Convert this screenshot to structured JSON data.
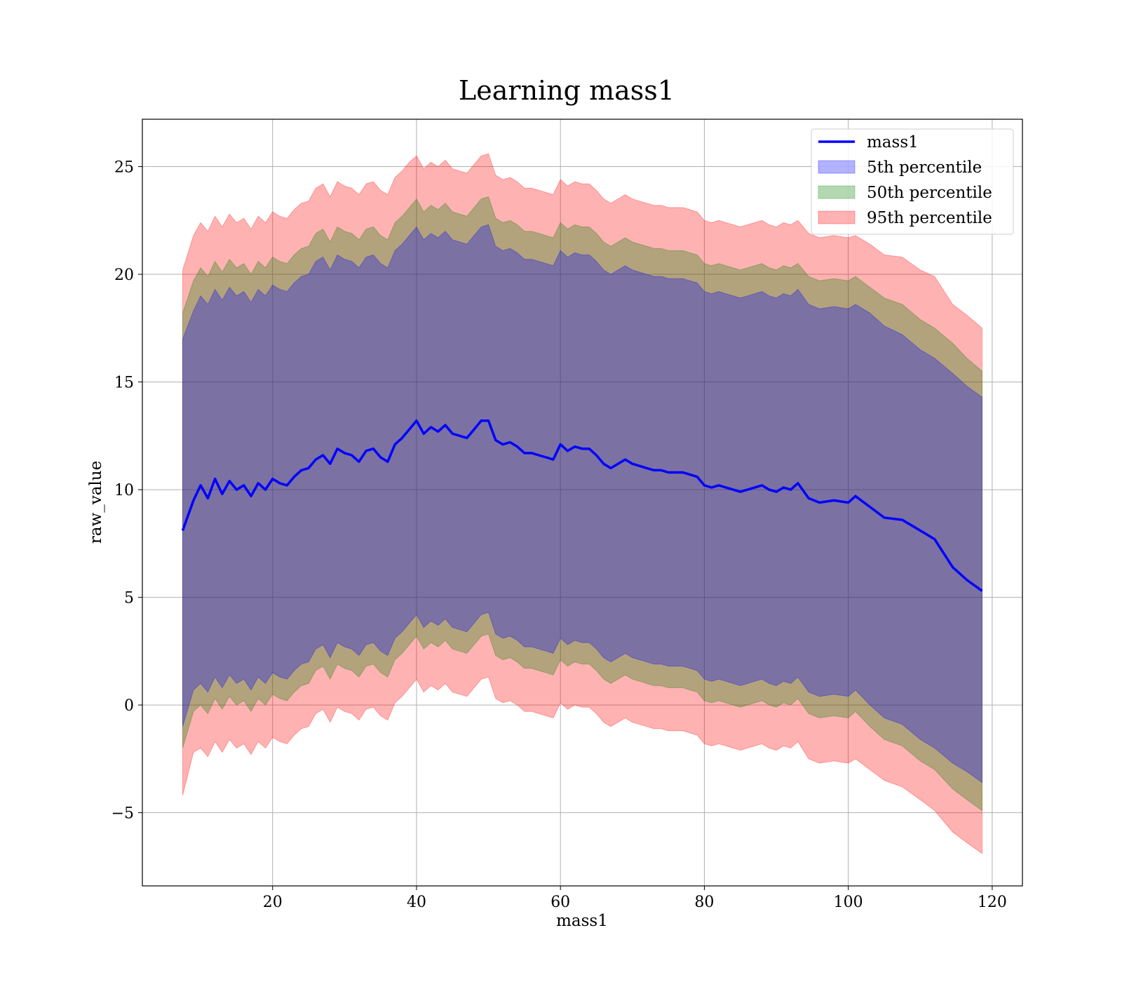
{
  "chart_data": {
    "type": "line",
    "title": "Learning mass1",
    "xlabel": "mass1",
    "ylabel": "raw_value",
    "xlim": [
      1.9,
      124.2
    ],
    "ylim": [
      -8.4,
      27.2
    ],
    "xticks": [
      20,
      40,
      60,
      80,
      100,
      120
    ],
    "xtick_labels": [
      "20",
      "40",
      "60",
      "80",
      "100",
      "120"
    ],
    "yticks": [
      -5,
      0,
      5,
      10,
      15,
      20,
      25
    ],
    "ytick_labels": [
      "−5",
      "0",
      "5",
      "10",
      "15",
      "20",
      "25"
    ],
    "grid": true,
    "legend_position": "upper right",
    "legend": [
      {
        "label": "mass1",
        "kind": "line",
        "color": "#0000ff"
      },
      {
        "label": "5th percentile",
        "kind": "band",
        "color": "#0000ff"
      },
      {
        "label": "50th percentile",
        "kind": "band",
        "color": "#008000"
      },
      {
        "label": "95th percentile",
        "kind": "band",
        "color": "#ff0000"
      }
    ],
    "x": [
      7.5,
      9,
      10,
      11,
      12,
      13,
      14,
      15,
      16,
      17,
      18,
      19,
      20,
      21,
      22,
      23,
      24,
      25,
      26,
      27,
      28,
      29,
      30,
      31,
      32,
      33,
      34,
      35,
      36,
      37,
      38,
      39,
      40,
      41,
      42,
      43,
      44,
      45,
      46,
      47,
      48,
      49,
      50,
      51,
      52,
      53,
      54,
      55,
      56,
      57,
      58,
      59,
      60,
      61,
      62,
      63,
      64,
      65,
      66,
      67,
      68,
      69,
      70,
      71,
      72,
      73,
      74,
      75,
      76,
      77,
      78,
      79,
      80,
      81,
      82,
      83,
      84,
      85,
      86,
      87,
      88,
      89,
      90,
      91,
      92,
      93,
      94.5,
      96,
      98,
      100,
      101,
      103,
      105,
      107.5,
      110,
      112,
      114.5,
      116.5,
      118.6
    ],
    "series": [
      {
        "name": "mass1",
        "kind": "line",
        "color": "#0000ff",
        "values": [
          8.1,
          9.5,
          10.2,
          9.6,
          10.5,
          9.8,
          10.4,
          10.0,
          10.2,
          9.7,
          10.3,
          10.0,
          10.5,
          10.3,
          10.2,
          10.6,
          10.9,
          11.0,
          11.4,
          11.6,
          11.2,
          11.9,
          11.7,
          11.6,
          11.3,
          11.8,
          11.9,
          11.5,
          11.3,
          12.1,
          12.4,
          12.8,
          13.2,
          12.6,
          12.9,
          12.7,
          13.0,
          12.6,
          12.5,
          12.4,
          12.8,
          13.2,
          13.2,
          12.3,
          12.1,
          12.2,
          12.0,
          11.7,
          11.7,
          11.6,
          11.5,
          11.4,
          12.1,
          11.8,
          12.0,
          11.9,
          11.9,
          11.6,
          11.2,
          11.0,
          11.2,
          11.4,
          11.2,
          11.1,
          11.0,
          10.9,
          10.9,
          10.8,
          10.8,
          10.8,
          10.7,
          10.6,
          10.2,
          10.1,
          10.2,
          10.1,
          10.0,
          9.9,
          10.0,
          10.1,
          10.2,
          10.0,
          9.9,
          10.1,
          10.0,
          10.3,
          9.6,
          9.4,
          9.5,
          9.4,
          9.7,
          9.2,
          8.7,
          8.6,
          8.1,
          7.7,
          6.4,
          5.8,
          5.3
        ]
      },
      {
        "name": "5th percentile",
        "kind": "band",
        "color": "#0000ff",
        "lower": [
          -1.0,
          0.7,
          1.0,
          0.6,
          1.3,
          0.8,
          1.4,
          1.0,
          1.2,
          0.7,
          1.3,
          1.0,
          1.5,
          1.3,
          1.2,
          1.6,
          1.9,
          2.0,
          2.6,
          2.8,
          2.2,
          2.9,
          2.7,
          2.6,
          2.3,
          2.8,
          2.9,
          2.5,
          2.3,
          3.1,
          3.4,
          3.8,
          4.2,
          3.6,
          3.9,
          3.7,
          4.0,
          3.6,
          3.5,
          3.4,
          3.8,
          4.2,
          4.3,
          3.3,
          3.1,
          3.2,
          3.0,
          2.7,
          2.7,
          2.6,
          2.5,
          2.4,
          3.1,
          2.8,
          3.0,
          2.9,
          2.9,
          2.6,
          2.2,
          2.0,
          2.2,
          2.4,
          2.2,
          2.1,
          2.0,
          1.9,
          1.9,
          1.8,
          1.8,
          1.8,
          1.7,
          1.6,
          1.2,
          1.1,
          1.2,
          1.1,
          1.0,
          0.9,
          1.0,
          1.1,
          1.2,
          1.0,
          0.9,
          1.1,
          1.0,
          1.3,
          0.6,
          0.4,
          0.5,
          0.4,
          0.7,
          0.0,
          -0.6,
          -0.9,
          -1.6,
          -2.0,
          -2.7,
          -3.1,
          -3.6
        ],
        "upper": [
          17.0,
          18.3,
          19.0,
          18.6,
          19.3,
          18.8,
          19.4,
          19.0,
          19.2,
          18.7,
          19.3,
          19.0,
          19.5,
          19.3,
          19.2,
          19.6,
          19.9,
          20.0,
          20.6,
          20.8,
          20.2,
          20.9,
          20.7,
          20.6,
          20.3,
          20.8,
          20.9,
          20.5,
          20.3,
          21.1,
          21.4,
          21.8,
          22.2,
          21.6,
          21.9,
          21.7,
          22.0,
          21.6,
          21.5,
          21.4,
          21.8,
          22.2,
          22.3,
          21.3,
          21.1,
          21.2,
          21.0,
          20.7,
          20.7,
          20.6,
          20.5,
          20.4,
          21.1,
          20.8,
          21.0,
          20.9,
          20.9,
          20.6,
          20.2,
          20.0,
          20.2,
          20.4,
          20.2,
          20.1,
          20.0,
          19.9,
          19.9,
          19.8,
          19.8,
          19.8,
          19.7,
          19.6,
          19.2,
          19.1,
          19.2,
          19.1,
          19.0,
          18.9,
          19.0,
          19.1,
          19.2,
          19.0,
          18.9,
          19.1,
          19.0,
          19.3,
          18.6,
          18.4,
          18.5,
          18.4,
          18.6,
          18.2,
          17.6,
          17.2,
          16.5,
          16.1,
          15.4,
          14.8,
          14.3
        ]
      },
      {
        "name": "50th percentile",
        "kind": "band",
        "color": "#008000",
        "lower": [
          -2.0,
          -0.3,
          0.0,
          -0.4,
          0.3,
          -0.2,
          0.4,
          0.0,
          0.2,
          -0.3,
          0.3,
          0.0,
          0.5,
          0.3,
          0.2,
          0.6,
          0.9,
          1.0,
          1.6,
          1.8,
          1.2,
          1.9,
          1.7,
          1.6,
          1.3,
          1.8,
          1.9,
          1.5,
          1.3,
          2.1,
          2.4,
          2.8,
          3.2,
          2.6,
          2.9,
          2.7,
          3.0,
          2.6,
          2.5,
          2.4,
          2.8,
          3.2,
          3.3,
          2.3,
          2.1,
          2.2,
          2.0,
          1.7,
          1.7,
          1.6,
          1.5,
          1.4,
          2.1,
          1.8,
          2.0,
          1.9,
          1.9,
          1.6,
          1.2,
          1.0,
          1.2,
          1.4,
          1.2,
          1.1,
          1.0,
          0.9,
          0.9,
          0.8,
          0.8,
          0.8,
          0.7,
          0.6,
          0.2,
          0.1,
          0.2,
          0.1,
          0.0,
          -0.1,
          0.0,
          0.1,
          0.2,
          0.0,
          -0.1,
          0.1,
          0.0,
          0.3,
          -0.4,
          -0.6,
          -0.5,
          -0.6,
          -0.3,
          -1.0,
          -1.6,
          -1.9,
          -2.6,
          -3.0,
          -3.9,
          -4.4,
          -4.9
        ],
        "upper": [
          18.2,
          19.7,
          20.3,
          19.9,
          20.6,
          20.1,
          20.7,
          20.3,
          20.5,
          20.0,
          20.6,
          20.3,
          20.8,
          20.6,
          20.5,
          20.9,
          21.2,
          21.3,
          21.9,
          22.1,
          21.5,
          22.2,
          22.0,
          21.9,
          21.6,
          22.1,
          22.2,
          21.8,
          21.6,
          22.4,
          22.7,
          23.1,
          23.5,
          22.9,
          23.2,
          23.0,
          23.3,
          22.9,
          22.8,
          22.7,
          23.1,
          23.5,
          23.6,
          22.6,
          22.4,
          22.5,
          22.3,
          22.0,
          22.0,
          21.9,
          21.8,
          21.7,
          22.4,
          22.1,
          22.3,
          22.2,
          22.2,
          21.9,
          21.5,
          21.3,
          21.5,
          21.7,
          21.5,
          21.4,
          21.3,
          21.2,
          21.2,
          21.1,
          21.1,
          21.1,
          21.0,
          20.9,
          20.5,
          20.4,
          20.5,
          20.4,
          20.3,
          20.2,
          20.3,
          20.4,
          20.5,
          20.3,
          20.2,
          20.4,
          20.3,
          20.5,
          19.9,
          19.7,
          19.8,
          19.7,
          19.9,
          19.4,
          18.9,
          18.6,
          17.9,
          17.5,
          16.8,
          16.1,
          15.5
        ]
      },
      {
        "name": "95th percentile",
        "kind": "band",
        "color": "#ff0000",
        "lower": [
          -4.2,
          -2.2,
          -2.0,
          -2.4,
          -1.7,
          -2.2,
          -1.6,
          -2.0,
          -1.8,
          -2.3,
          -1.7,
          -2.0,
          -1.5,
          -1.7,
          -1.8,
          -1.4,
          -1.1,
          -1.0,
          -0.4,
          -0.2,
          -0.8,
          -0.1,
          -0.3,
          -0.4,
          -0.7,
          -0.2,
          -0.1,
          -0.5,
          -0.7,
          0.1,
          0.4,
          0.8,
          1.2,
          0.6,
          0.9,
          0.7,
          1.0,
          0.6,
          0.5,
          0.4,
          0.8,
          1.2,
          1.3,
          0.3,
          0.1,
          0.2,
          0.0,
          -0.3,
          -0.3,
          -0.4,
          -0.5,
          -0.6,
          0.1,
          -0.2,
          0.0,
          -0.1,
          -0.1,
          -0.4,
          -0.8,
          -1.0,
          -0.8,
          -0.6,
          -0.8,
          -0.9,
          -1.0,
          -1.1,
          -1.1,
          -1.2,
          -1.2,
          -1.2,
          -1.3,
          -1.4,
          -1.8,
          -1.9,
          -1.8,
          -1.9,
          -2.0,
          -2.1,
          -2.0,
          -1.9,
          -1.8,
          -2.0,
          -2.1,
          -1.9,
          -2.0,
          -1.7,
          -2.5,
          -2.7,
          -2.6,
          -2.7,
          -2.5,
          -3.0,
          -3.5,
          -3.8,
          -4.4,
          -4.9,
          -5.9,
          -6.4,
          -6.9
        ],
        "upper": [
          20.2,
          21.8,
          22.4,
          22.0,
          22.7,
          22.2,
          22.8,
          22.4,
          22.6,
          22.1,
          22.7,
          22.4,
          22.9,
          22.7,
          22.6,
          23.0,
          23.3,
          23.4,
          24.0,
          24.2,
          23.6,
          24.3,
          24.1,
          24.0,
          23.7,
          24.2,
          24.3,
          23.9,
          23.7,
          24.5,
          24.8,
          25.2,
          25.5,
          24.9,
          25.2,
          25.0,
          25.3,
          24.9,
          24.8,
          24.7,
          25.1,
          25.5,
          25.6,
          24.6,
          24.4,
          24.5,
          24.3,
          24.0,
          24.0,
          23.9,
          23.8,
          23.7,
          24.4,
          24.1,
          24.3,
          24.2,
          24.2,
          23.9,
          23.5,
          23.3,
          23.5,
          23.7,
          23.5,
          23.4,
          23.3,
          23.2,
          23.2,
          23.1,
          23.1,
          23.1,
          23.0,
          22.9,
          22.5,
          22.4,
          22.5,
          22.4,
          22.3,
          22.2,
          22.3,
          22.4,
          22.5,
          22.3,
          22.2,
          22.4,
          22.3,
          22.5,
          21.9,
          21.7,
          21.8,
          21.7,
          21.8,
          21.4,
          20.9,
          20.8,
          20.2,
          19.9,
          18.6,
          18.1,
          17.5
        ]
      }
    ]
  }
}
